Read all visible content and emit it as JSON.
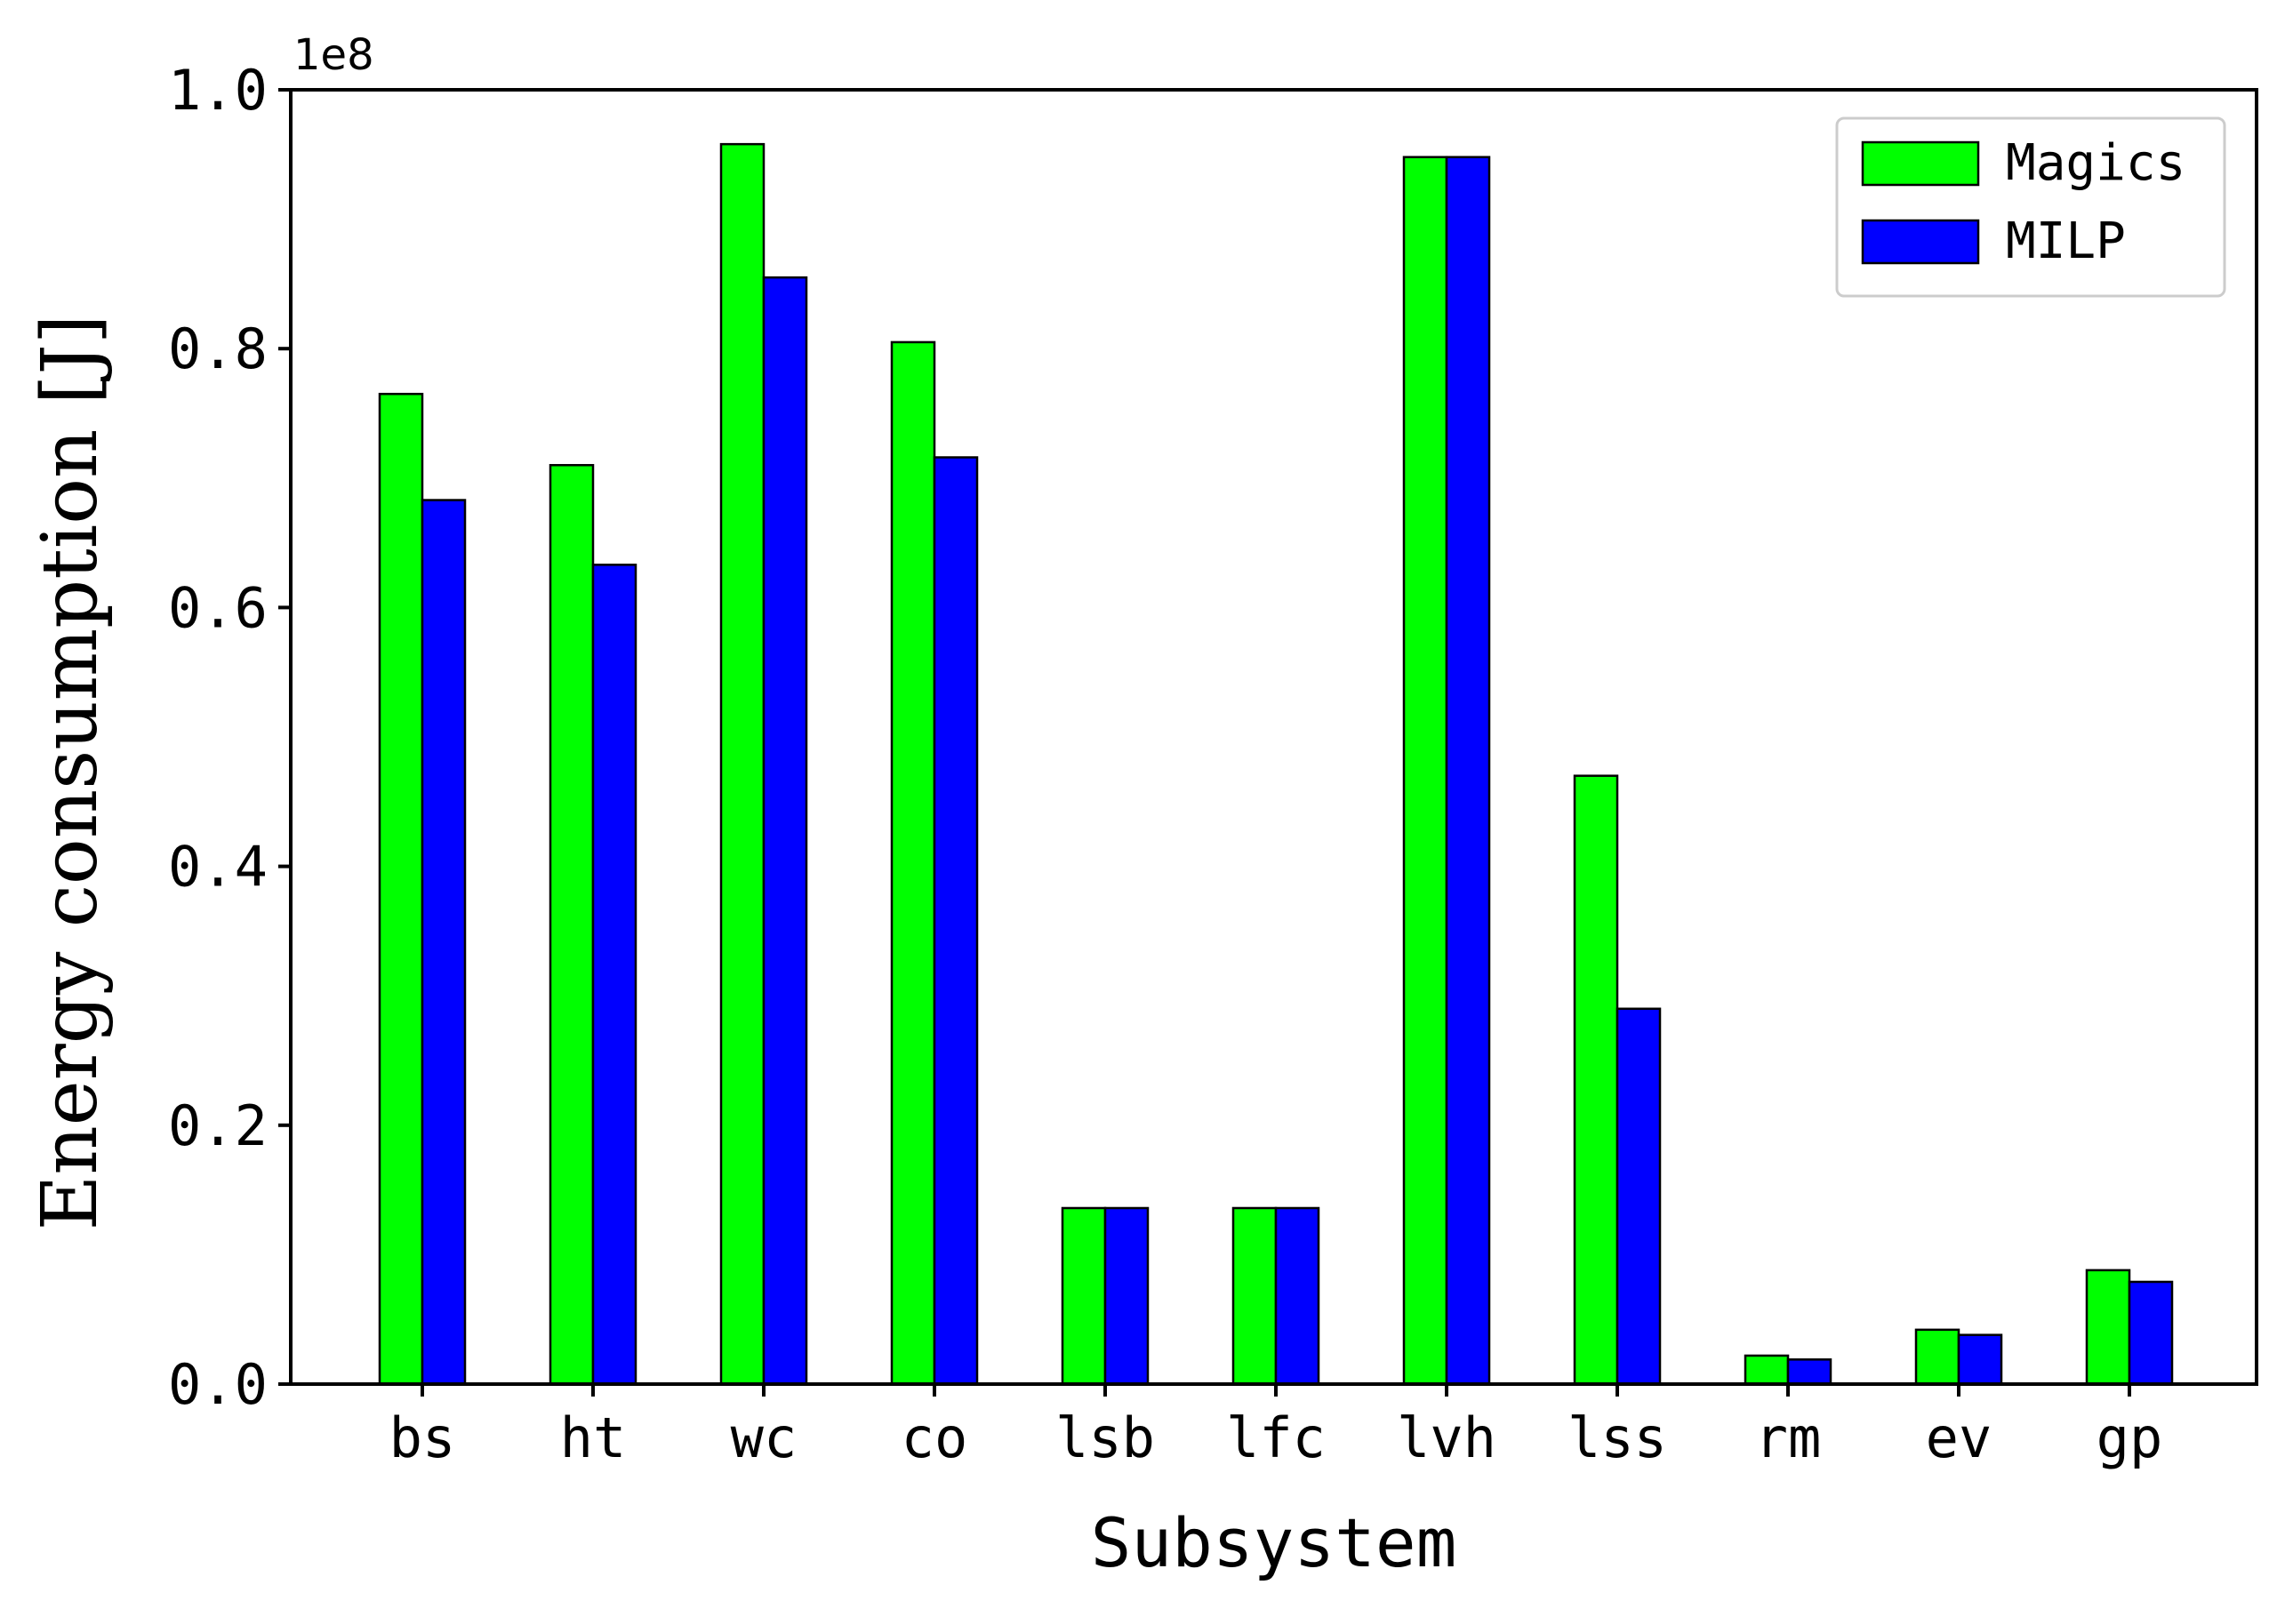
{
  "chart_data": {
    "type": "bar",
    "categories": [
      "bs",
      "ht",
      "wc",
      "co",
      "lsb",
      "lfc",
      "lvh",
      "lss",
      "rm",
      "ev",
      "gp"
    ],
    "series": [
      {
        "name": "Magics",
        "color": "#00ff00",
        "values": [
          0.765,
          0.71,
          0.958,
          0.805,
          0.136,
          0.136,
          0.948,
          0.47,
          0.022,
          0.042,
          0.088
        ]
      },
      {
        "name": "MILP",
        "color": "#0000ff",
        "values": [
          0.683,
          0.633,
          0.855,
          0.716,
          0.136,
          0.136,
          0.948,
          0.29,
          0.019,
          0.038,
          0.079
        ]
      }
    ],
    "xlabel": "Subsystem",
    "ylabel": "Energy consumption [J]",
    "offset_text": "1e8",
    "ylim": [
      0,
      1.0
    ],
    "yticks": [
      0.0,
      0.2,
      0.4,
      0.6,
      0.8,
      1.0
    ],
    "ytick_labels": [
      "0.0",
      "0.2",
      "0.4",
      "0.6",
      "0.8",
      "1.0"
    ],
    "legend_position": "top-right",
    "grid": false
  }
}
